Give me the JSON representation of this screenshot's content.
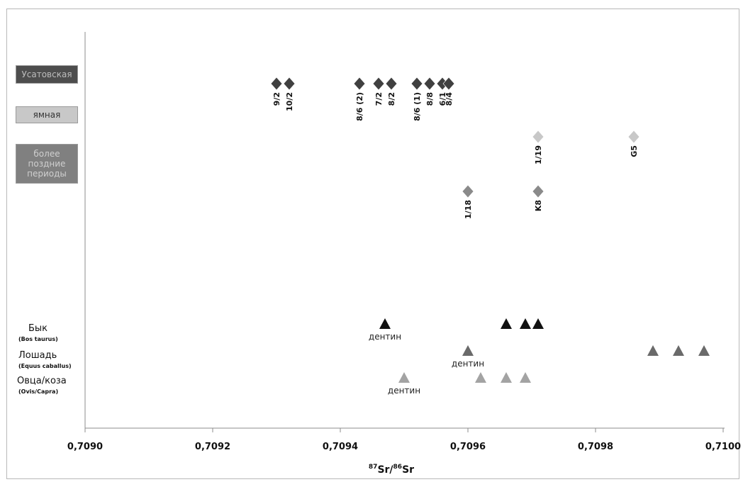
{
  "chart_data": {
    "type": "scatter",
    "xlabel": "87Sr/86Sr",
    "xlabel_parts": {
      "sup1": "87",
      "t1": "Sr/",
      "sup2": "86",
      "t2": "Sr"
    },
    "xlim": [
      0.709,
      0.71
    ],
    "x_ticks": [
      "0,7090",
      "0,7092",
      "0,7094",
      "0,7096",
      "0,7098",
      "0,7100"
    ],
    "x_tick_values": [
      0.709,
      0.7092,
      0.7094,
      0.7096,
      0.7098,
      0.71
    ],
    "grid": false,
    "legend": [
      {
        "label": "Усатовская",
        "color": "#4d4d4d",
        "text_color": "#bdbdbd"
      },
      {
        "label": "ямная",
        "color": "#c8c8c8",
        "text_color": "#333333"
      },
      {
        "label": "более поздние периоды",
        "color": "#808080",
        "text_color": "#cfcfcf"
      }
    ],
    "series": [
      {
        "name": "Усатовская",
        "marker": "diamond",
        "color": "#404040",
        "row": 1,
        "points": [
          {
            "x": 0.7093,
            "label": "9/2"
          },
          {
            "x": 0.70932,
            "label": "10/2"
          },
          {
            "x": 0.70943,
            "label": "8/6 (2)"
          },
          {
            "x": 0.70946,
            "label": "7/2"
          },
          {
            "x": 0.70948,
            "label": "8/2"
          },
          {
            "x": 0.70952,
            "label": "8/6 (1)"
          },
          {
            "x": 0.70954,
            "label": "8/8"
          },
          {
            "x": 0.70956,
            "label": "6/1"
          },
          {
            "x": 0.70957,
            "label": "8/4"
          }
        ]
      },
      {
        "name": "ямная",
        "marker": "diamond",
        "color": "#c8c8c8",
        "row": 2,
        "points": [
          {
            "x": 0.70971,
            "label": "1/19"
          },
          {
            "x": 0.70986,
            "label": "G5"
          }
        ]
      },
      {
        "name": "более поздние периоды",
        "marker": "diamond",
        "color": "#8a8a8a",
        "row": 3,
        "points": [
          {
            "x": 0.7096,
            "label": "1/18"
          },
          {
            "x": 0.70971,
            "label": "K8"
          }
        ]
      },
      {
        "name": "Бык",
        "latin": "(Bos taurus)",
        "marker": "triangle",
        "color": "#111111",
        "row": 4,
        "points": [
          {
            "x": 0.70947,
            "label": "дентин"
          },
          {
            "x": 0.70966,
            "label": ""
          },
          {
            "x": 0.70969,
            "label": ""
          },
          {
            "x": 0.70971,
            "label": ""
          }
        ]
      },
      {
        "name": "Лошадь",
        "latin": "(Equus caballus)",
        "marker": "triangle",
        "color": "#6a6a6a",
        "row": 5,
        "points": [
          {
            "x": 0.7096,
            "label": "дентин"
          },
          {
            "x": 0.70989,
            "label": ""
          },
          {
            "x": 0.70993,
            "label": ""
          },
          {
            "x": 0.70997,
            "label": ""
          }
        ]
      },
      {
        "name": "Овца/коза",
        "latin": "(Ovis/Capra)",
        "marker": "triangle",
        "color": "#a3a3a3",
        "row": 6,
        "points": [
          {
            "x": 0.7095,
            "label": "дентин"
          },
          {
            "x": 0.70962,
            "label": ""
          },
          {
            "x": 0.70966,
            "label": ""
          },
          {
            "x": 0.70969,
            "label": ""
          }
        ]
      }
    ]
  }
}
